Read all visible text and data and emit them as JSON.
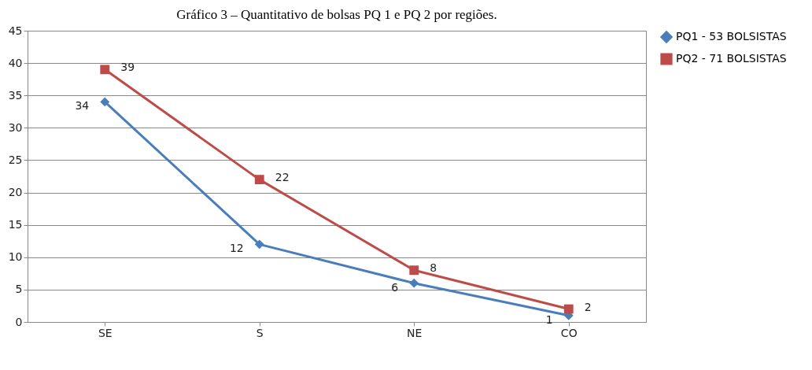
{
  "chart_data": {
    "type": "line",
    "title": "Gráfico 3 – Quantitativo de bolsas PQ 1 e PQ 2 por regiões.",
    "categories": [
      "SE",
      "S",
      "NE",
      "CO"
    ],
    "series": [
      {
        "name": "PQ1 - 53 BOLSISTAS",
        "color": "#4a7ebb",
        "marker": "diamond",
        "values": [
          34,
          12,
          6,
          1
        ]
      },
      {
        "name": "PQ2 - 71 BOLSISTAS",
        "color": "#be4b48",
        "marker": "square",
        "values": [
          39,
          22,
          8,
          2
        ]
      }
    ],
    "ylim": [
      0,
      45
    ],
    "yticks": [
      0,
      5,
      10,
      15,
      20,
      25,
      30,
      35,
      40,
      45
    ],
    "grid": "y",
    "legend": "right",
    "data_labels": true,
    "line_style": "solid"
  }
}
